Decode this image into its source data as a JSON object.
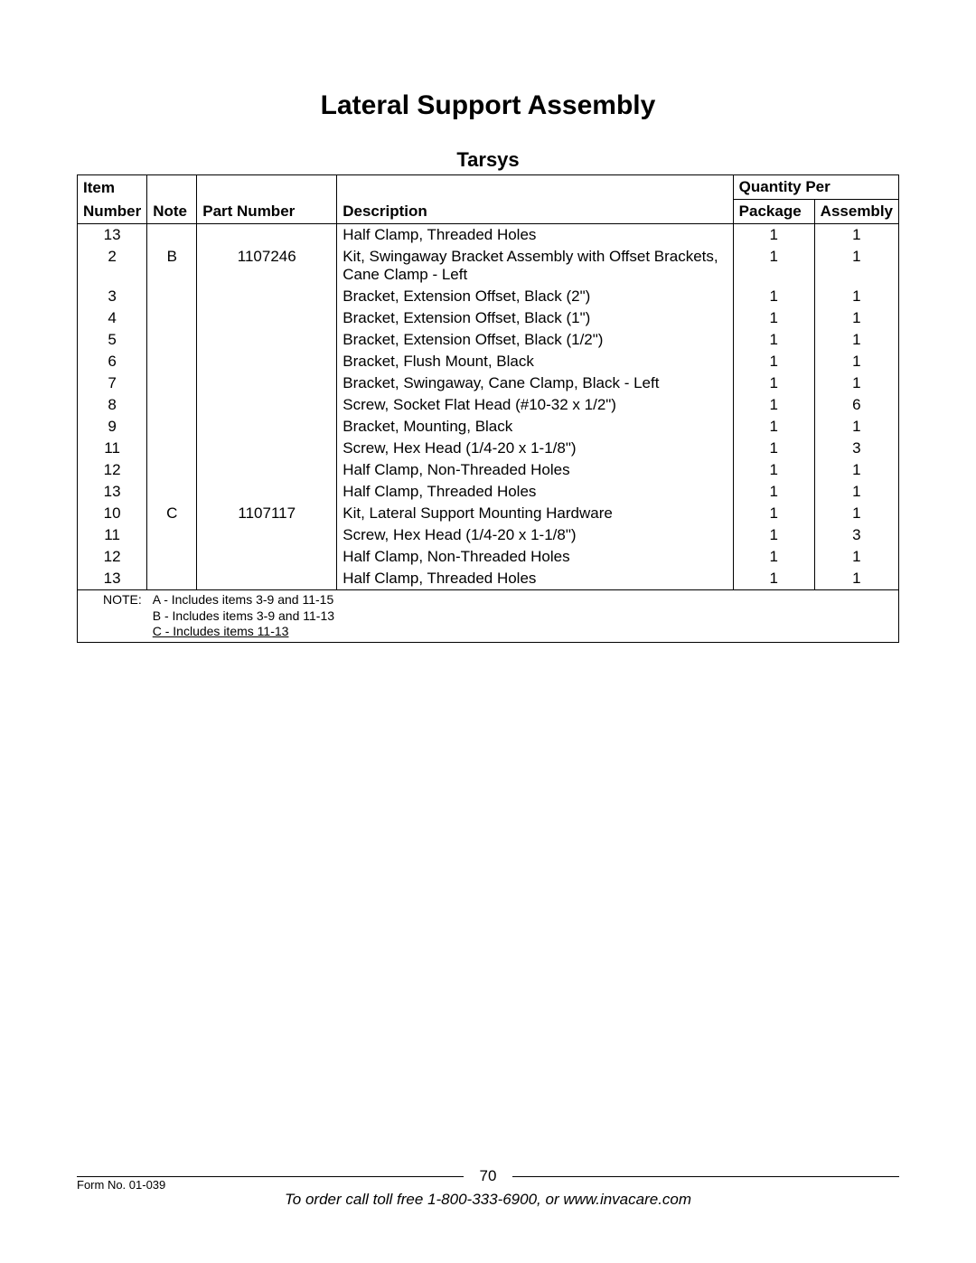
{
  "title": "Lateral Support Assembly",
  "subtitle": "Tarsys",
  "headers": {
    "item_top": "Item",
    "item_bottom": "Number",
    "note": "Note",
    "part_number": "Part Number",
    "description": "Description",
    "qty_group": "Quantity Per",
    "package": "Package",
    "assembly": "Assembly"
  },
  "rows": [
    {
      "item": "13",
      "note": "",
      "part": "",
      "desc": "Half Clamp, Threaded Holes",
      "pkg": "1",
      "asm": "1"
    },
    {
      "item": "2",
      "note": "B",
      "part": "1107246",
      "desc": "Kit, Swingaway Bracket Assembly with Offset Brackets, Cane Clamp - Left",
      "pkg": "1",
      "asm": "1"
    },
    {
      "item": "3",
      "note": "",
      "part": "",
      "desc": "Bracket, Extension Offset, Black (2\")",
      "pkg": "1",
      "asm": "1"
    },
    {
      "item": "4",
      "note": "",
      "part": "",
      "desc": "Bracket, Extension Offset, Black (1\")",
      "pkg": "1",
      "asm": "1"
    },
    {
      "item": "5",
      "note": "",
      "part": "",
      "desc": "Bracket, Extension Offset, Black (1/2\")",
      "pkg": "1",
      "asm": "1"
    },
    {
      "item": "6",
      "note": "",
      "part": "",
      "desc": "Bracket, Flush Mount, Black",
      "pkg": "1",
      "asm": "1"
    },
    {
      "item": "7",
      "note": "",
      "part": "",
      "desc": "Bracket, Swingaway, Cane Clamp, Black - Left",
      "pkg": "1",
      "asm": "1"
    },
    {
      "item": "8",
      "note": "",
      "part": "",
      "desc": "Screw, Socket Flat Head (#10-32 x 1/2\")",
      "pkg": "1",
      "asm": "6"
    },
    {
      "item": "9",
      "note": "",
      "part": "",
      "desc": "Bracket, Mounting, Black",
      "pkg": "1",
      "asm": "1"
    },
    {
      "item": "11",
      "note": "",
      "part": "",
      "desc": "Screw, Hex Head (1/4-20 x 1-1/8\")",
      "pkg": "1",
      "asm": "3"
    },
    {
      "item": "12",
      "note": "",
      "part": "",
      "desc": "Half Clamp, Non-Threaded Holes",
      "pkg": "1",
      "asm": "1"
    },
    {
      "item": "13",
      "note": "",
      "part": "",
      "desc": "Half Clamp, Threaded Holes",
      "pkg": "1",
      "asm": "1"
    },
    {
      "item": "10",
      "note": "C",
      "part": "1107117",
      "desc": "Kit, Lateral Support Mounting Hardware",
      "pkg": "1",
      "asm": "1"
    },
    {
      "item": "11",
      "note": "",
      "part": "",
      "desc": "Screw, Hex Head (1/4-20 x 1-1/8\")",
      "pkg": "1",
      "asm": "3"
    },
    {
      "item": "12",
      "note": "",
      "part": "",
      "desc": "Half Clamp, Non-Threaded Holes",
      "pkg": "1",
      "asm": "1"
    },
    {
      "item": "13",
      "note": "",
      "part": "",
      "desc": "Half Clamp, Threaded Holes",
      "pkg": "1",
      "asm": "1"
    }
  ],
  "notes": {
    "label": "NOTE:",
    "lines": [
      "A - Includes items 3-9 and 11-15",
      "B - Includes items 3-9 and 11-13",
      "C - Includes items 11-13"
    ]
  },
  "footer": {
    "page": "70",
    "form": "Form No. 01-039",
    "order": "To order call toll free 1-800-333-6900, or www.invacare.com"
  }
}
